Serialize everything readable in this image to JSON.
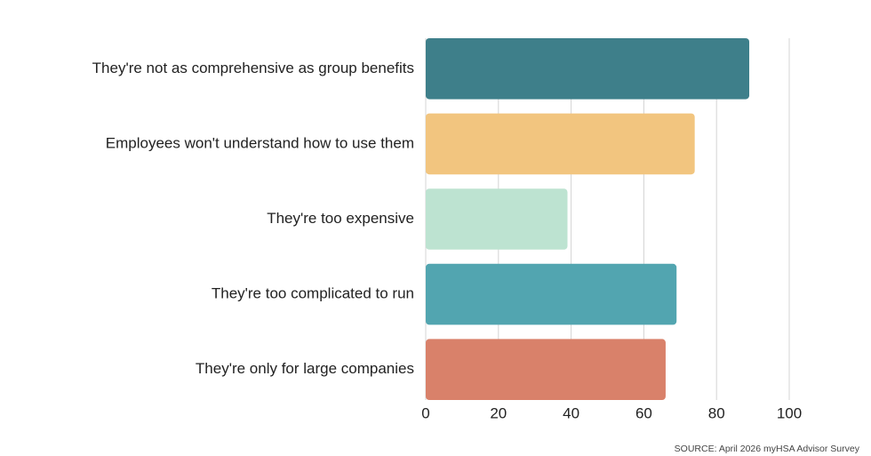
{
  "chart_data": {
    "type": "bar",
    "orientation": "horizontal",
    "categories": [
      "They're not as comprehensive as group benefits",
      "Employees won't understand how to use them",
      "They're too expensive",
      "They're too complicated to run",
      "They're only for large companies"
    ],
    "values": [
      89,
      74,
      39,
      69,
      66
    ],
    "colors": [
      "#3e7f8a",
      "#f2c57f",
      "#bde3d1",
      "#52a5b0",
      "#d9816a"
    ],
    "xlim": [
      0,
      100
    ],
    "xticks": [
      0,
      20,
      40,
      60,
      80,
      100
    ],
    "grid": true,
    "source": "SOURCE: April 2026 myHSA Advisor Survey"
  }
}
